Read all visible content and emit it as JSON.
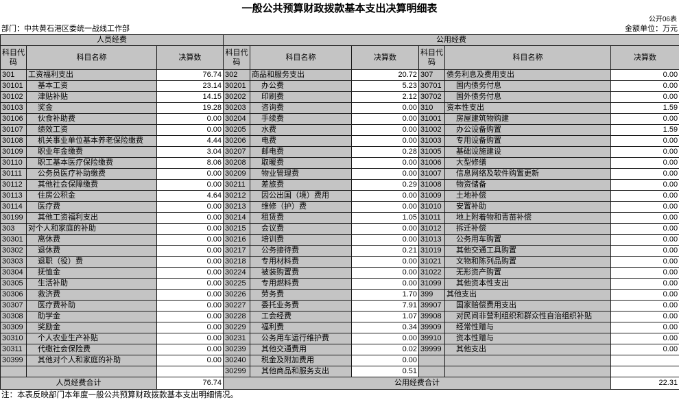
{
  "title": "一般公共预算财政拨款基本支出决算明细表",
  "table_code": "公开06表",
  "department_label": "部门：中共黄石港区委统一战线工作部",
  "unit_label": "金额单位：万元",
  "note": "注：本表反映部门本年度一般公共预算财政拨款基本支出明细情况。",
  "table": {
    "group_headers": [
      "人员经费",
      "公用经费"
    ],
    "col_headers": {
      "code": "科目代码",
      "name": "科目名称",
      "value": "决算数"
    },
    "personnel_rows": [
      {
        "code": "301",
        "name": "工资福利支出",
        "value": "76.74"
      },
      {
        "code": "30101",
        "name": "基本工资",
        "value": "23.14"
      },
      {
        "code": "30102",
        "name": "津贴补贴",
        "value": "14.15"
      },
      {
        "code": "30103",
        "name": "奖金",
        "value": "19.28"
      },
      {
        "code": "30106",
        "name": "伙食补助费",
        "value": "0.00"
      },
      {
        "code": "30107",
        "name": "绩效工资",
        "value": "0.00"
      },
      {
        "code": "30108",
        "name": "机关事业单位基本养老保险缴费",
        "value": "4.44"
      },
      {
        "code": "30109",
        "name": "职业年金缴费",
        "value": "3.04"
      },
      {
        "code": "30110",
        "name": "职工基本医疗保险缴费",
        "value": "8.06"
      },
      {
        "code": "30111",
        "name": "公务员医疗补助缴费",
        "value": "0.00"
      },
      {
        "code": "30112",
        "name": "其他社会保障缴费",
        "value": "0.00"
      },
      {
        "code": "30113",
        "name": "住房公积金",
        "value": "4.64"
      },
      {
        "code": "30114",
        "name": "医疗费",
        "value": "0.00"
      },
      {
        "code": "30199",
        "name": "其他工资福利支出",
        "value": "0.00"
      },
      {
        "code": "303",
        "name": "对个人和家庭的补助",
        "value": "0.00"
      },
      {
        "code": "30301",
        "name": "离休费",
        "value": "0.00"
      },
      {
        "code": "30302",
        "name": "退休费",
        "value": "0.00"
      },
      {
        "code": "30303",
        "name": "退职（役）费",
        "value": "0.00"
      },
      {
        "code": "30304",
        "name": "抚恤金",
        "value": "0.00"
      },
      {
        "code": "30305",
        "name": "生活补助",
        "value": "0.00"
      },
      {
        "code": "30306",
        "name": "救济费",
        "value": "0.00"
      },
      {
        "code": "30307",
        "name": "医疗费补助",
        "value": "0.00"
      },
      {
        "code": "30308",
        "name": "助学金",
        "value": "0.00"
      },
      {
        "code": "30309",
        "name": "奖励金",
        "value": "0.00"
      },
      {
        "code": "30310",
        "name": "个人农业生产补贴",
        "value": "0.00"
      },
      {
        "code": "30311",
        "name": "代缴社会保险费",
        "value": "0.00"
      },
      {
        "code": "30399",
        "name": "其他对个人和家庭的补助",
        "value": "0.00"
      },
      {
        "code": "",
        "name": "",
        "value": ""
      }
    ],
    "goods_rows": [
      {
        "code": "302",
        "name": "商品和服务支出",
        "value": "20.72"
      },
      {
        "code": "30201",
        "name": "办公费",
        "value": "5.23"
      },
      {
        "code": "30202",
        "name": "印刷费",
        "value": "2.12"
      },
      {
        "code": "30203",
        "name": "咨询费",
        "value": "0.00"
      },
      {
        "code": "30204",
        "name": "手续费",
        "value": "0.00"
      },
      {
        "code": "30205",
        "name": "水费",
        "value": "0.00"
      },
      {
        "code": "30206",
        "name": "电费",
        "value": "0.00"
      },
      {
        "code": "30207",
        "name": "邮电费",
        "value": "0.28"
      },
      {
        "code": "30208",
        "name": "取暖费",
        "value": "0.00"
      },
      {
        "code": "30209",
        "name": "物业管理费",
        "value": "0.00"
      },
      {
        "code": "30211",
        "name": "差旅费",
        "value": "0.29"
      },
      {
        "code": "30212",
        "name": "因公出国（境）费用",
        "value": "0.00"
      },
      {
        "code": "30213",
        "name": "维修（护）费",
        "value": "0.00"
      },
      {
        "code": "30214",
        "name": "租赁费",
        "value": "1.05"
      },
      {
        "code": "30215",
        "name": "会议费",
        "value": "0.00"
      },
      {
        "code": "30216",
        "name": "培训费",
        "value": "0.00"
      },
      {
        "code": "30217",
        "name": "公务接待费",
        "value": "0.21"
      },
      {
        "code": "30218",
        "name": "专用材料费",
        "value": "0.00"
      },
      {
        "code": "30224",
        "name": "被装购置费",
        "value": "0.00"
      },
      {
        "code": "30225",
        "name": "专用燃料费",
        "value": "0.00"
      },
      {
        "code": "30226",
        "name": "劳务费",
        "value": "1.70"
      },
      {
        "code": "30227",
        "name": "委托业务费",
        "value": "7.91"
      },
      {
        "code": "30228",
        "name": "工会经费",
        "value": "1.07"
      },
      {
        "code": "30229",
        "name": "福利费",
        "value": "0.34"
      },
      {
        "code": "30231",
        "name": "公务用车运行维护费",
        "value": "0.00"
      },
      {
        "code": "30239",
        "name": "其他交通费用",
        "value": "0.02"
      },
      {
        "code": "30240",
        "name": "税金及附加费用",
        "value": "0.00"
      },
      {
        "code": "30299",
        "name": "其他商品和服务支出",
        "value": "0.51"
      }
    ],
    "capital_rows": [
      {
        "code": "307",
        "name": "债务利息及费用支出",
        "value": "0.00"
      },
      {
        "code": "30701",
        "name": "国内债务付息",
        "value": "0.00"
      },
      {
        "code": "30702",
        "name": "国外债务付息",
        "value": "0.00"
      },
      {
        "code": "310",
        "name": "资本性支出",
        "value": "1.59"
      },
      {
        "code": "31001",
        "name": "房屋建筑物购建",
        "value": "0.00"
      },
      {
        "code": "31002",
        "name": "办公设备购置",
        "value": "1.59"
      },
      {
        "code": "31003",
        "name": "专用设备购置",
        "value": "0.00"
      },
      {
        "code": "31005",
        "name": "基础设施建设",
        "value": "0.00"
      },
      {
        "code": "31006",
        "name": "大型修缮",
        "value": "0.00"
      },
      {
        "code": "31007",
        "name": "信息网络及软件购置更新",
        "value": "0.00"
      },
      {
        "code": "31008",
        "name": "物资储备",
        "value": "0.00"
      },
      {
        "code": "31009",
        "name": "土地补偿",
        "value": "0.00"
      },
      {
        "code": "31010",
        "name": "安置补助",
        "value": "0.00"
      },
      {
        "code": "31011",
        "name": "地上附着物和青苗补偿",
        "value": "0.00"
      },
      {
        "code": "31012",
        "name": "拆迁补偿",
        "value": "0.00"
      },
      {
        "code": "31013",
        "name": "公务用车购置",
        "value": "0.00"
      },
      {
        "code": "31019",
        "name": "其他交通工具购置",
        "value": "0.00"
      },
      {
        "code": "31021",
        "name": "文物和陈列品购置",
        "value": "0.00"
      },
      {
        "code": "31022",
        "name": "无形资产购置",
        "value": "0.00"
      },
      {
        "code": "31099",
        "name": "其他资本性支出",
        "value": "0.00"
      },
      {
        "code": "399",
        "name": "其他支出",
        "value": "0.00"
      },
      {
        "code": "39907",
        "name": "国家赔偿费用支出",
        "value": "0.00"
      },
      {
        "code": "39908",
        "name": "对民间非营利组织和群众性自治组织补贴",
        "value": "0.00"
      },
      {
        "code": "39909",
        "name": "经常性赠与",
        "value": "0.00"
      },
      {
        "code": "39910",
        "name": "资本性赠与",
        "value": "0.00"
      },
      {
        "code": "39999",
        "name": "其他支出",
        "value": "0.00"
      },
      {
        "code": "",
        "name": "",
        "value": ""
      },
      {
        "code": "",
        "name": "",
        "value": ""
      }
    ],
    "totals": {
      "personnel_label": "人员经费合计",
      "personnel_value": "76.74",
      "public_label": "公用经费合计",
      "public_value": "22.31"
    }
  }
}
